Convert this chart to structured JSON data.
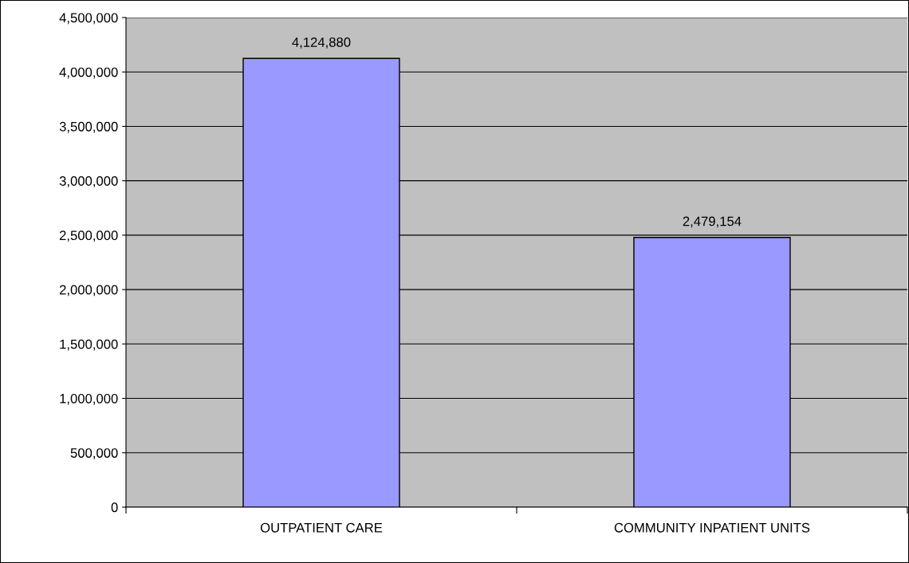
{
  "chart_data": {
    "type": "bar",
    "categories": [
      "OUTPATIENT CARE",
      "COMMUNITY INPATIENT UNITS"
    ],
    "values": [
      4124880,
      2479154
    ],
    "value_labels": [
      "4,124,880",
      "2,479,154"
    ],
    "color": "#9999ff",
    "ylim": [
      0,
      4500000
    ],
    "yticks": [
      {
        "value": 0,
        "label": "0"
      },
      {
        "value": 500000,
        "label": "500,000"
      },
      {
        "value": 1000000,
        "label": "1,000,000"
      },
      {
        "value": 1500000,
        "label": "1,500,000"
      },
      {
        "value": 2000000,
        "label": "2,000,000"
      },
      {
        "value": 2500000,
        "label": "2,500,000"
      },
      {
        "value": 3000000,
        "label": "3,000,000"
      },
      {
        "value": 3500000,
        "label": "3,500,000"
      },
      {
        "value": 4000000,
        "label": "4,000,000"
      },
      {
        "value": 4500000,
        "label": "4,500,000"
      }
    ],
    "grid": "y",
    "legend": false
  }
}
